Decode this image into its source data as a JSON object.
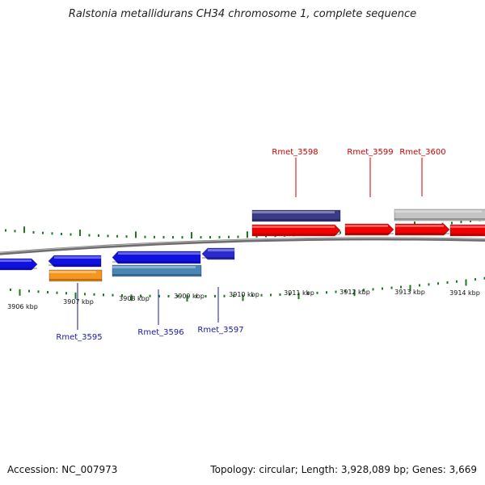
{
  "title": "Ralstonia metallidurans CH34 chromosome 1, complete sequence",
  "footer": {
    "accession": "Accession: NC_007973",
    "summary": "Topology: circular; Length: 3,928,089 bp; Genes: 3,669"
  },
  "colors": {
    "backbone": "#7a7a7a",
    "tick": "#1f7a1f",
    "label_top": "#cc0000",
    "label_bottom": "#1a1aa6"
  },
  "scale": {
    "kbp_labels": [
      "3906 kbp",
      "3907 kbp",
      "3908 kbp",
      "3909 kbp",
      "3910 kbp",
      "3911 kbp",
      "3912 kbp",
      "3913 kbp",
      "3914 kbp"
    ]
  },
  "genes": [
    {
      "name": "blue-forward-1",
      "color": "#1010e0"
    },
    {
      "name": "blue-reverse-1",
      "color": "#1010e0"
    },
    {
      "name": "blue-reverse-2",
      "color": "#1010e0"
    },
    {
      "name": "blue-reverse-3",
      "color": "#2a2ad0"
    },
    {
      "name": "orange-gene",
      "color": "#f5961e"
    },
    {
      "name": "steelblue-gene",
      "color": "#4a86b4"
    },
    {
      "name": "darkpurple-gene",
      "color": "#3a3a86"
    },
    {
      "name": "grey-gene",
      "color": "#c4c4c4"
    },
    {
      "name": "red-forward-1",
      "color": "#f00000"
    },
    {
      "name": "red-forward-2",
      "color": "#f00000"
    },
    {
      "name": "red-forward-3",
      "color": "#f00000"
    },
    {
      "name": "red-forward-4",
      "color": "#f00000"
    }
  ],
  "gene_labels": [
    {
      "text": "Rmet_3595",
      "side": "bottom"
    },
    {
      "text": "Rmet_3596",
      "side": "bottom"
    },
    {
      "text": "Rmet_3597",
      "side": "bottom"
    },
    {
      "text": "Rmet_3598",
      "side": "top"
    },
    {
      "text": "Rmet_3599",
      "side": "top"
    },
    {
      "text": "Rmet_3600",
      "side": "top"
    }
  ]
}
